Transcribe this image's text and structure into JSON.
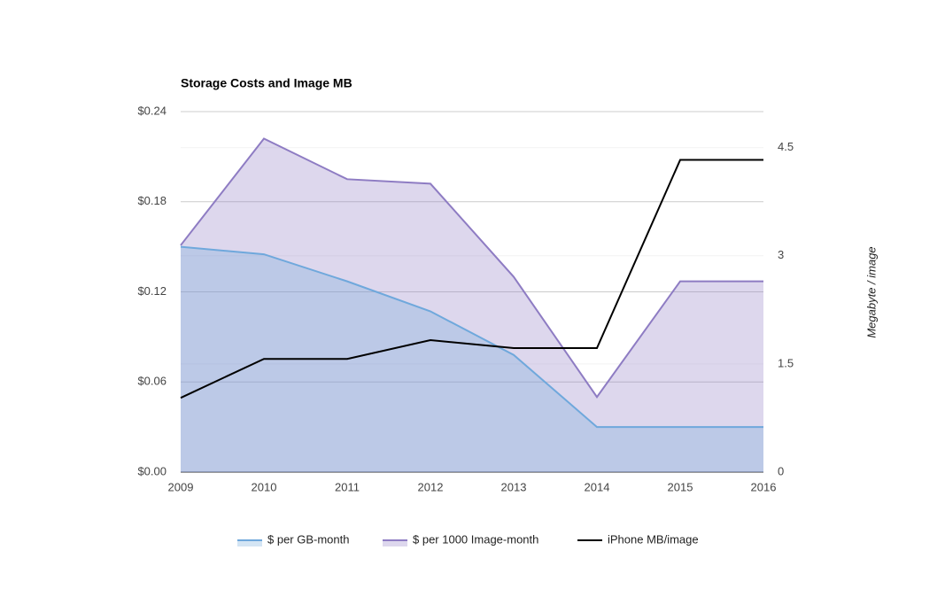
{
  "chart_data": {
    "type": "area",
    "title": "Storage Costs and Image MB",
    "categories": [
      "2009",
      "2010",
      "2011",
      "2012",
      "2013",
      "2014",
      "2015",
      "2016"
    ],
    "y2_label": "Megabyte / image",
    "ylim": [
      0,
      0.24
    ],
    "yticks": [
      {
        "value": 0,
        "label": "$0.00"
      },
      {
        "value": 0.06,
        "label": "$0.06"
      },
      {
        "value": 0.12,
        "label": "$0.12"
      },
      {
        "value": 0.18,
        "label": "$0.18"
      },
      {
        "value": 0.24,
        "label": "$0.24"
      }
    ],
    "y2lim": [
      0,
      5
    ],
    "y2ticks": [
      0,
      1.5,
      3,
      4.5
    ],
    "grid": true,
    "legend": "bottom",
    "series": [
      {
        "name": "$ per 1000 Image-month",
        "color": "#8e7cc3",
        "values": [
          0.151,
          0.222,
          0.195,
          0.192,
          0.13,
          0.05,
          0.127,
          0.127
        ]
      },
      {
        "name": "$ per GB-month",
        "color": "#6fa8dc",
        "values": [
          0.15,
          0.145,
          0.127,
          0.107,
          0.078,
          0.03,
          0.03,
          0.03
        ]
      },
      {
        "name": "iPhone MB/image",
        "color": "#000000",
        "type": "line",
        "axis": "y2",
        "values": [
          1.03,
          1.57,
          1.57,
          1.83,
          1.72,
          1.72,
          4.33,
          4.33
        ]
      }
    ],
    "legend_order": [
      1,
      0,
      2
    ]
  }
}
